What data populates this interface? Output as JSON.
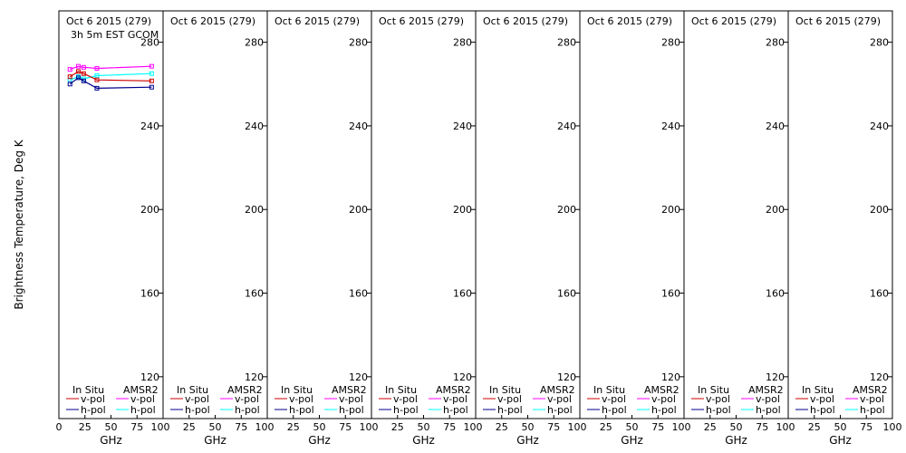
{
  "chart_data": {
    "type": "line",
    "ylabel": "Brightness Temperature, Deg K",
    "xlabel": "GHz",
    "xlim": [
      0,
      100
    ],
    "ylim": [
      100,
      295
    ],
    "x_ticks": [
      0,
      25,
      50,
      75,
      100
    ],
    "y_ticks": [
      120,
      160,
      200,
      240,
      280
    ],
    "legend": {
      "left_header": "In Situ",
      "right_header": "AMSR2",
      "entries": [
        "v-pol",
        "h-pol",
        "v-pol",
        "h-pol"
      ]
    },
    "panels": [
      {
        "title": "Oct 6 2015 (279)",
        "subtitle": "3h 5m EST GCOM",
        "series": [
          {
            "color": "#ff00ff",
            "x": [
              10.65,
              18.7,
              23.8,
              36.5,
              89.0
            ],
            "y": [
              267,
              268.5,
              268,
              267.5,
              268.5
            ]
          },
          {
            "color": "#00ffff",
            "x": [
              10.65,
              18.7,
              23.8,
              36.5,
              89.0
            ],
            "y": [
              262,
              263.5,
              262.5,
              264,
              265
            ]
          },
          {
            "color": "#cc0000",
            "x": [
              10.65,
              18.7,
              23.8,
              36.5,
              89.0
            ],
            "y": [
              263.5,
              266,
              265,
              262,
              261.5
            ]
          },
          {
            "color": "#00008b",
            "x": [
              10.65,
              18.7,
              23.8,
              36.5,
              89.0
            ],
            "y": [
              260,
              263,
              261.5,
              258,
              258.5
            ]
          }
        ]
      },
      {
        "title": "Oct 6 2015 (279)",
        "series": []
      },
      {
        "title": "Oct 6 2015 (279)",
        "series": []
      },
      {
        "title": "Oct 6 2015 (279)",
        "series": []
      },
      {
        "title": "Oct 6 2015 (279)",
        "series": []
      },
      {
        "title": "Oct 6 2015 (279)",
        "series": []
      },
      {
        "title": "Oct 6 2015 (279)",
        "series": []
      },
      {
        "title": "Oct 6 2015 (279)",
        "series": []
      }
    ],
    "legend_colors": {
      "in_situ_v": "#cc0000",
      "in_situ_h": "#00008b",
      "amsr2_v": "#ff00ff",
      "amsr2_h": "#00ffff"
    }
  }
}
